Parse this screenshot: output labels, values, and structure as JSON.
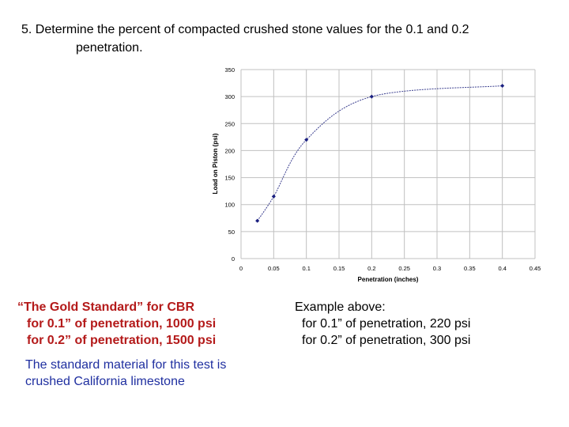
{
  "heading": {
    "line1": "5. Determine the percent of compacted crushed stone values for the 0.1 and 0.2",
    "line2": "penetration."
  },
  "chart_data": {
    "type": "scatter",
    "smooth_line": true,
    "xlabel": "Penetration (inches)",
    "ylabel": "Load on Piston (psi)",
    "xlim": [
      0,
      0.45
    ],
    "ylim": [
      0,
      350
    ],
    "x_ticks": [
      "0",
      "0.05",
      "0.1",
      "0.15",
      "0.2",
      "0.25",
      "0.3",
      "0.35",
      "0.4",
      "0.45"
    ],
    "y_ticks": [
      "0",
      "50",
      "100",
      "150",
      "200",
      "250",
      "300",
      "350"
    ],
    "grid": true,
    "points": [
      {
        "x": 0.025,
        "y": 70
      },
      {
        "x": 0.05,
        "y": 115
      },
      {
        "x": 0.1,
        "y": 220
      },
      {
        "x": 0.2,
        "y": 300
      },
      {
        "x": 0.4,
        "y": 320
      }
    ],
    "colors": {
      "line": "#3b3f8f",
      "marker": "#1a1f80",
      "grid": "#c0c0c0"
    }
  },
  "gold_standard": {
    "title": "“The Gold Standard” for CBR",
    "line1": "for 0.1” of penetration, 1000 psi",
    "line2": "for 0.2” of penetration, 1500 psi",
    "color": "#b41a1a"
  },
  "example": {
    "title": "Example above:",
    "line1": "for 0.1” of penetration, 220 psi",
    "line2": "for 0.2” of penetration, 300 psi"
  },
  "material": {
    "line1": "The standard material for this test is",
    "line2": "crushed California limestone",
    "color": "#1f2fa0"
  }
}
